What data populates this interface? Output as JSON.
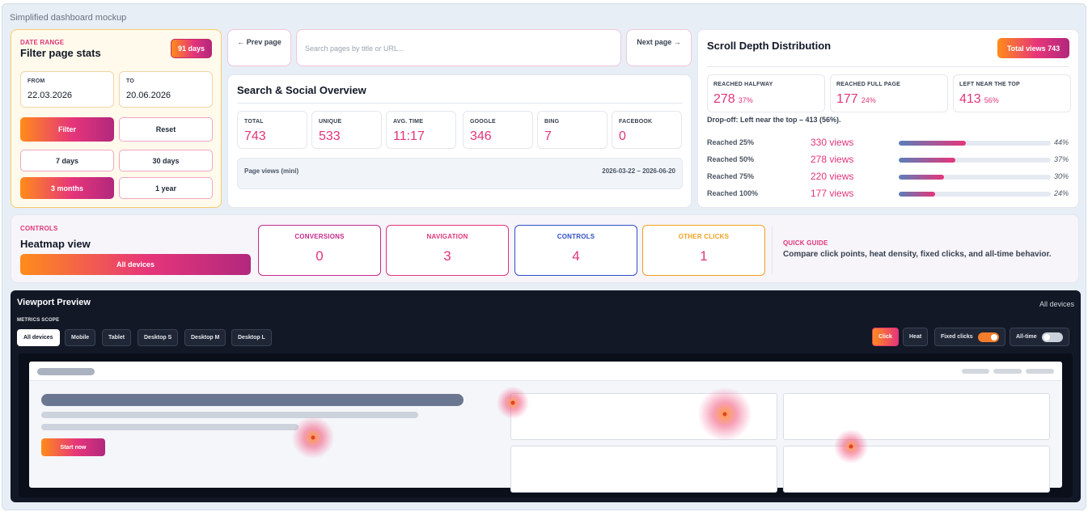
{
  "page": {
    "title": "Simplified dashboard mockup"
  },
  "date_range": {
    "label": "DATE RANGE",
    "title": "Filter page stats",
    "badge": "91 days",
    "from_label": "FROM",
    "from_value": "22.03.2026",
    "to_label": "TO",
    "to_value": "20.06.2026",
    "filter_btn": "Filter",
    "reset_btn": "Reset",
    "presets": [
      "7 days",
      "30 days",
      "3 months",
      "1 year"
    ],
    "active_preset": "3 months"
  },
  "pager": {
    "prev": "← Prev page",
    "next": "Next page →",
    "search_placeholder": "Search pages by title or URL..."
  },
  "overview": {
    "title": "Search & Social Overview",
    "stats": [
      {
        "label": "TOTAL",
        "value": "743"
      },
      {
        "label": "UNIQUE",
        "value": "533"
      },
      {
        "label": "AVG. TIME",
        "value": "11:17"
      },
      {
        "label": "GOOGLE",
        "value": "346"
      },
      {
        "label": "BING",
        "value": "7"
      },
      {
        "label": "FACEBOOK",
        "value": "0"
      }
    ],
    "mini_label": "Page views (mini)",
    "mini_range": "2026-03-22 – 2026-06-20"
  },
  "scroll_depth": {
    "title": "Scroll Depth Distribution",
    "badge": "Total views 743",
    "boxes": [
      {
        "label": "REACHED HALFWAY",
        "value": "278",
        "pct": "37%"
      },
      {
        "label": "REACHED FULL PAGE",
        "value": "177",
        "pct": "24%"
      },
      {
        "label": "LEFT NEAR THE TOP",
        "value": "413",
        "pct": "56%"
      }
    ],
    "dropoff": "Drop-off: Left near the top – 413 (56%).",
    "rows": [
      {
        "label": "Reached 25%",
        "views": "330 views",
        "pct": "44%",
        "fraction": 0.44
      },
      {
        "label": "Reached 50%",
        "views": "278 views",
        "pct": "37%",
        "fraction": 0.37
      },
      {
        "label": "Reached 75%",
        "views": "220 views",
        "pct": "30%",
        "fraction": 0.3
      },
      {
        "label": "Reached 100%",
        "views": "177 views",
        "pct": "24%",
        "fraction": 0.24
      }
    ]
  },
  "heatmap_controls": {
    "label": "CONTROLS",
    "title": "Heatmap view",
    "device_btn": "All devices",
    "categories": [
      {
        "label": "CONVERSIONS",
        "value": "0",
        "color": "#c42a8a"
      },
      {
        "label": "NAVIGATION",
        "value": "3",
        "color": "#e0357a"
      },
      {
        "label": "CONTROLS",
        "value": "4",
        "color": "#2f4fc4"
      },
      {
        "label": "OTHER CLICKS",
        "value": "1",
        "color": "#f0a020"
      }
    ],
    "guide_label": "QUICK GUIDE",
    "guide_text": "Compare click points, heat density, fixed clicks, and all-time behavior."
  },
  "viewport": {
    "title": "Viewport Preview",
    "device_label": "All devices",
    "scope_label": "METRICS SCOPE",
    "scopes": [
      "All devices",
      "Mobile",
      "Tablet",
      "Desktop S",
      "Desktop M",
      "Desktop L"
    ],
    "active_scope": "All devices",
    "modes": {
      "click": "Click",
      "heat": "Heat",
      "fixed": "Fixed clicks",
      "alltime": "All-time"
    },
    "fixed_on": true,
    "alltime_on": false,
    "preview_button": "Start now"
  }
}
